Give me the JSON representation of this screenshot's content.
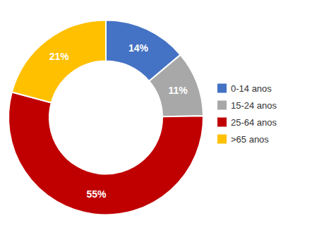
{
  "chart_data": {
    "type": "donut",
    "categories": [
      "0-14 anos",
      "15-24 anos",
      "25-64 anos",
      ">65 anos"
    ],
    "values": [
      14,
      11,
      55,
      21
    ],
    "value_labels": [
      "14%",
      "11%",
      "55%",
      "21%"
    ],
    "colors": [
      "#4472C4",
      "#A8A8A8",
      "#C00000",
      "#FFC000"
    ],
    "data_labels": true,
    "legend": "right"
  }
}
